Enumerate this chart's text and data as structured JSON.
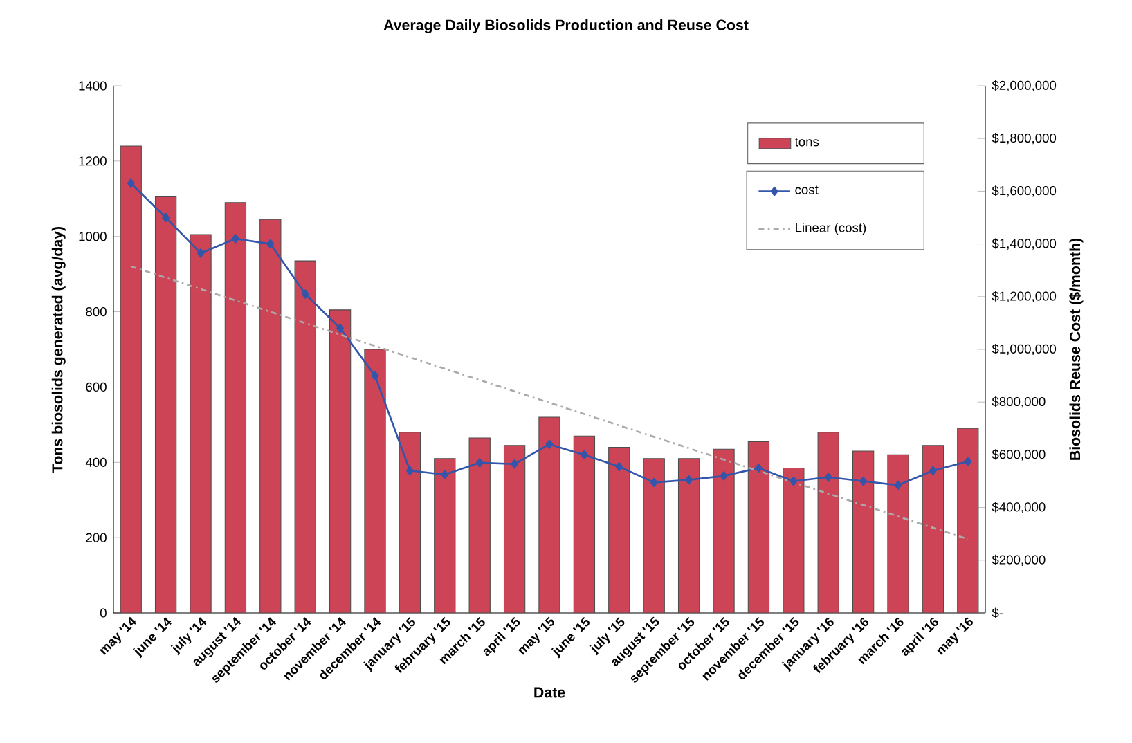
{
  "chart_data": {
    "type": "bar",
    "title": "Average Daily Biosolids Production and Reuse Cost",
    "xlabel": "Date",
    "ylabel": "Tons biosolids generated (avg/day)",
    "y2label": "Biosolids Reuse Cost ($/month)",
    "categories": [
      "may '14",
      "june '14",
      "july '14",
      "august '14",
      "september '14",
      "october '14",
      "november '14",
      "december '14",
      "january '15",
      "february '15",
      "march '15",
      "april '15",
      "may '15",
      "june '15",
      "july '15",
      "august '15",
      "september '15",
      "october '15",
      "november '15",
      "december '15",
      "january '16",
      "february '16",
      "march '16",
      "april '16",
      "may '16"
    ],
    "series": [
      {
        "name": "tons",
        "color": "#cc4455",
        "values": [
          1240,
          1105,
          1005,
          1090,
          1045,
          935,
          805,
          700,
          480,
          410,
          465,
          445,
          520,
          470,
          440,
          410,
          410,
          435,
          455,
          385,
          480,
          430,
          420,
          445,
          490
        ]
      },
      {
        "name": "cost",
        "type": "line",
        "axis": "y2",
        "color": "#3355aa",
        "marker": "diamond",
        "values": [
          1630000,
          1500000,
          1365000,
          1420000,
          1400000,
          1210000,
          1080000,
          900000,
          540000,
          525000,
          570000,
          565000,
          640000,
          600000,
          555000,
          495000,
          505000,
          520000,
          550000,
          500000,
          515000,
          500000,
          485000,
          540000,
          575000
        ]
      },
      {
        "name": "Linear (cost)",
        "type": "line",
        "axis": "y2",
        "color": "#aaaaaa",
        "line_style": "dashed",
        "marker": "none",
        "values": [
          1315000,
          null,
          null,
          null,
          null,
          null,
          null,
          null,
          null,
          null,
          null,
          null,
          null,
          null,
          null,
          null,
          null,
          null,
          null,
          null,
          null,
          null,
          null,
          null,
          280000
        ]
      }
    ],
    "ylim": [
      0,
      1400
    ],
    "yticks": [
      0,
      200,
      400,
      600,
      800,
      1000,
      1200,
      1400
    ],
    "y2lim": [
      0,
      2000000
    ],
    "y2ticks": [
      {
        "value": 0,
        "label": "$-"
      },
      {
        "value": 200000,
        "label": "$200,000"
      },
      {
        "value": 400000,
        "label": "$400,000"
      },
      {
        "value": 600000,
        "label": "$600,000"
      },
      {
        "value": 800000,
        "label": "$800,000"
      },
      {
        "value": 1000000,
        "label": "$1,000,000"
      },
      {
        "value": 1200000,
        "label": "$1,200,000"
      },
      {
        "value": 1400000,
        "label": "$1,400,000"
      },
      {
        "value": 1600000,
        "label": "$1,600,000"
      },
      {
        "value": 1800000,
        "label": "$1,800,000"
      },
      {
        "value": 2000000,
        "label": "$2,000,000"
      }
    ],
    "legend": "top right",
    "grid": false
  }
}
